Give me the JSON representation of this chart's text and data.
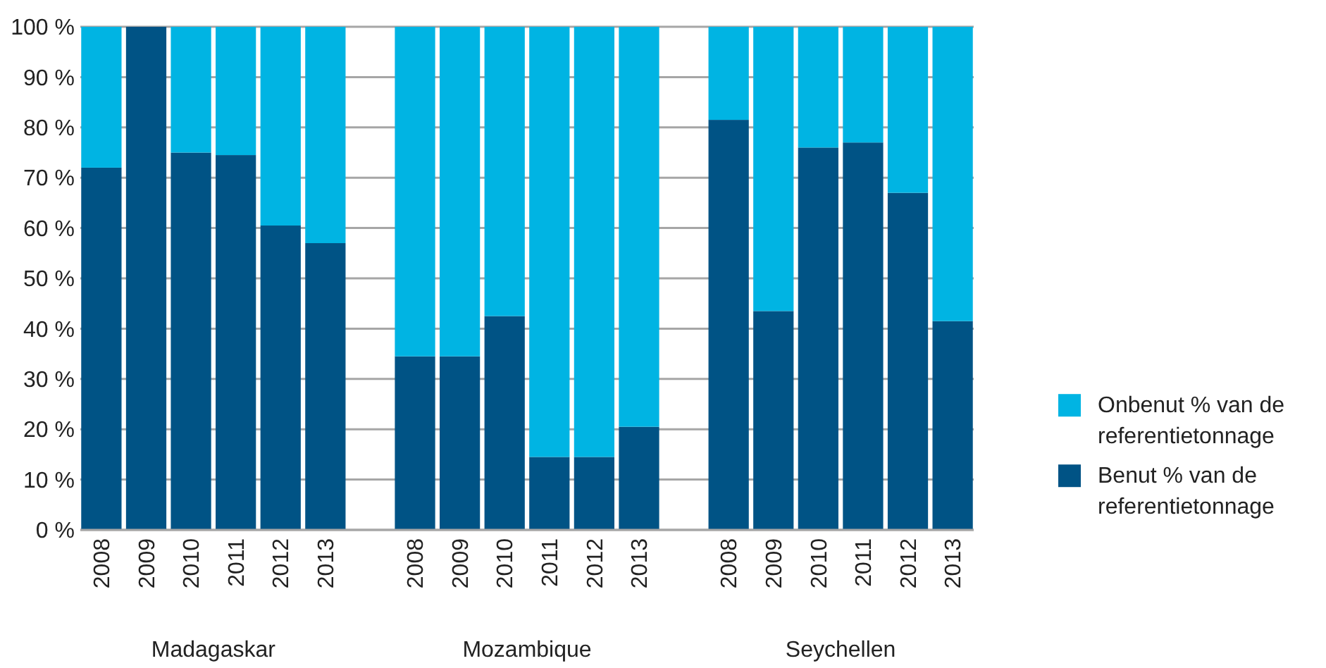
{
  "chart_data": {
    "type": "bar",
    "stacked": true,
    "categories": [
      "2008",
      "2009",
      "2010",
      "2011",
      "2012",
      "2013",
      null,
      "2008",
      "2009",
      "2010",
      "2011",
      "2012",
      "2013",
      null,
      "2008",
      "2009",
      "2010",
      "2011",
      "2012",
      "2013"
    ],
    "series": [
      {
        "name": "Benut % van de referentietonnage",
        "color": "#005385",
        "values": [
          72,
          100,
          75,
          74.5,
          60.5,
          57,
          null,
          34.5,
          34.5,
          42.5,
          14.5,
          14.5,
          20.5,
          null,
          81.5,
          43.5,
          76,
          77,
          67,
          41.5
        ]
      },
      {
        "name": "Onbenut % van de referentietonnage",
        "color": "#00b4e3",
        "values": [
          28,
          0,
          25,
          25.5,
          39.5,
          43,
          null,
          65.5,
          65.5,
          57.5,
          85.5,
          85.5,
          79.5,
          null,
          18.5,
          56.5,
          24,
          23,
          33,
          58.5
        ]
      }
    ],
    "ylim": [
      0,
      100
    ],
    "yticks": [
      {
        "value": 0,
        "label": "0 %"
      },
      {
        "value": 10,
        "label": "10 %"
      },
      {
        "value": 20,
        "label": "20 %"
      },
      {
        "value": 30,
        "label": "30 %"
      },
      {
        "value": 40,
        "label": "40 %"
      },
      {
        "value": 50,
        "label": "50 %"
      },
      {
        "value": 60,
        "label": "60 %"
      },
      {
        "value": 70,
        "label": "70 %"
      },
      {
        "value": 80,
        "label": "80 %"
      },
      {
        "value": 90,
        "label": "90 %"
      },
      {
        "value": 100,
        "label": "100 %"
      }
    ],
    "grid": "y",
    "legend": "right",
    "annotations": [
      "Madagaskar",
      "Mozambique",
      "Seychellen"
    ]
  }
}
